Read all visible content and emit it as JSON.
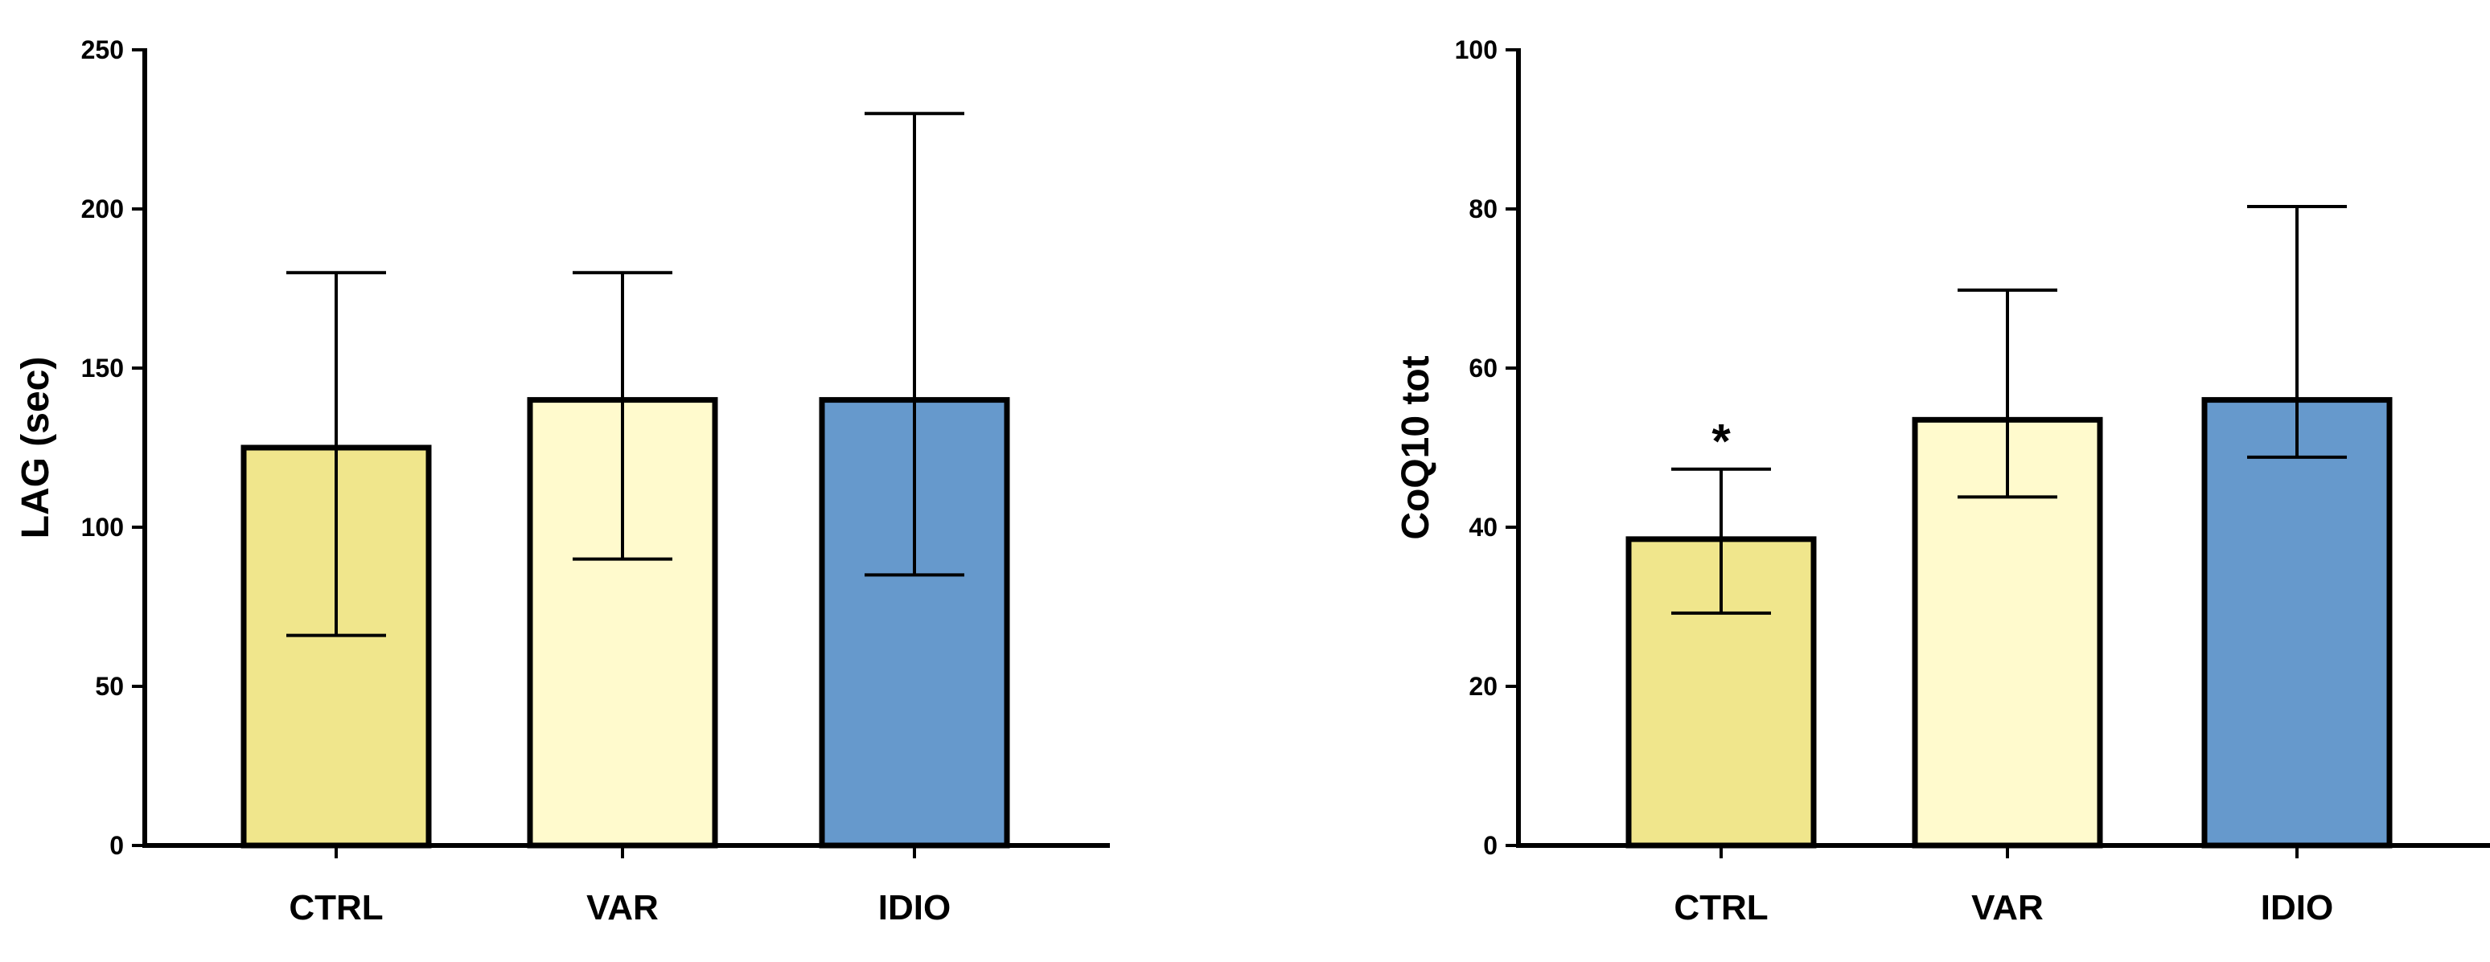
{
  "chart_data": [
    {
      "type": "bar",
      "title": "",
      "xlabel": "",
      "ylabel": "LAG (sec)",
      "ylim": [
        0,
        250
      ],
      "yticks": [
        0,
        50,
        100,
        150,
        200,
        250
      ],
      "categories": [
        "CTRL",
        "VAR",
        "IDIO"
      ],
      "values": [
        125,
        140,
        140
      ],
      "error_low": [
        66,
        90,
        85
      ],
      "error_high": [
        180,
        180,
        230
      ],
      "colors": [
        "#F0E68C",
        "#FFFACD",
        "#6699CC"
      ],
      "annotations": []
    },
    {
      "type": "bar",
      "title": "",
      "xlabel": "",
      "ylabel": "CoQ10 tot",
      "ylim": [
        0,
        100
      ],
      "yticks": [
        0,
        20,
        40,
        60,
        80,
        100
      ],
      "categories": [
        "CTRL",
        "VAR",
        "IDIO"
      ],
      "values": [
        38.5,
        53.5,
        56
      ],
      "error_low": [
        29.2,
        43.8,
        48.8
      ],
      "error_high": [
        47.3,
        69.8,
        80.3
      ],
      "colors": [
        "#F0E68C",
        "#FFFACD",
        "#6699CC"
      ],
      "annotations": [
        {
          "category": "CTRL",
          "text": "*"
        }
      ]
    }
  ]
}
